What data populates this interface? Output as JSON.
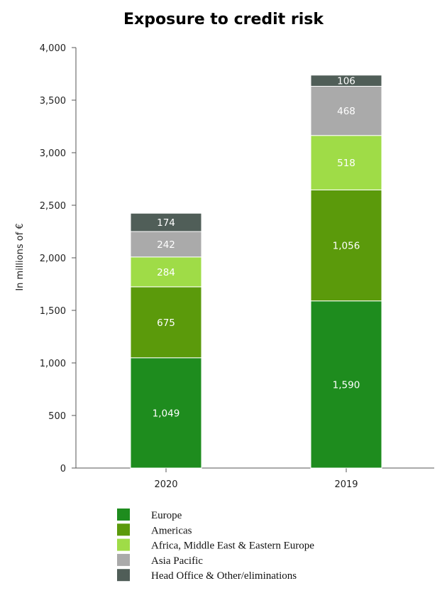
{
  "chart_data": {
    "type": "bar",
    "stacked": true,
    "title": "Exposure to credit risk",
    "xlabel": "",
    "ylabel": "In millions of €",
    "ylim": [
      0,
      4000
    ],
    "yticks": [
      0,
      500,
      1000,
      1500,
      2000,
      2500,
      3000,
      3500,
      4000
    ],
    "ytick_labels": [
      "0",
      "500",
      "1,000",
      "1,500",
      "2,000",
      "2,500",
      "3,000",
      "3,500",
      "4,000"
    ],
    "categories": [
      "2020",
      "2019"
    ],
    "series": [
      {
        "name": "Europe",
        "values": [
          1049,
          1590
        ],
        "labels": [
          "1,049",
          "1,590"
        ],
        "color": "#1e8c1e"
      },
      {
        "name": "Americas",
        "values": [
          675,
          1056
        ],
        "labels": [
          "675",
          "1,056"
        ],
        "color": "#5b9a0b"
      },
      {
        "name": "Africa, Middle East & Eastern Europe",
        "values": [
          284,
          518
        ],
        "labels": [
          "284",
          "518"
        ],
        "color": "#9fdc47"
      },
      {
        "name": "Asia Pacific",
        "values": [
          242,
          468
        ],
        "labels": [
          "242",
          "468"
        ],
        "color": "#aaaaaa"
      },
      {
        "name": "Head Office & Other/eliminations",
        "values": [
          174,
          106
        ],
        "labels": [
          "174",
          "106"
        ],
        "color": "#505e58"
      }
    ],
    "grid": false,
    "legend_position": "bottom"
  }
}
